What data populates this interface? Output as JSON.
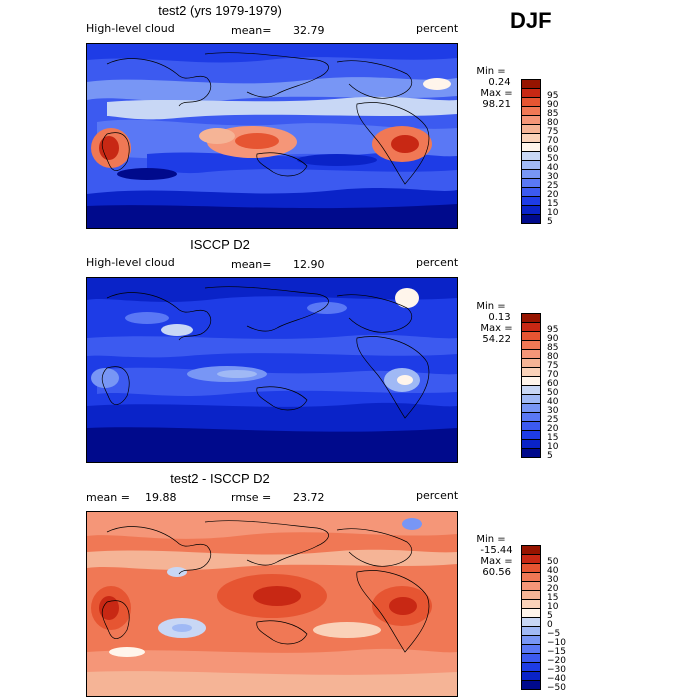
{
  "season": "DJF",
  "chart_data": [
    {
      "type": "heatmap",
      "title": "test2 (yrs 1979-1979)",
      "variable": "High-level cloud",
      "stat_label": "mean=",
      "stat_value": "32.79",
      "units": "percent",
      "min_label": "Min =",
      "min_value": "0.24",
      "max_label": "Max =",
      "max_value": "98.21",
      "colorbar_levels": [
        "5",
        "10",
        "15",
        "20",
        "25",
        "30",
        "40",
        "50",
        "60",
        "70",
        "75",
        "80",
        "85",
        "90",
        "95"
      ],
      "colorbar_colors": [
        "#000a8c",
        "#0a23c8",
        "#1e3ce6",
        "#3c5af0",
        "#5a78f5",
        "#7896f5",
        "#a0b9f5",
        "#c8d7f5",
        "#fff5eb",
        "#fad2b9",
        "#f5b496",
        "#f59678",
        "#f07855",
        "#e65532",
        "#c82814",
        "#961400"
      ]
    },
    {
      "type": "heatmap",
      "title": "ISCCP D2",
      "variable": "High-level cloud",
      "stat_label": "mean=",
      "stat_value": "12.90",
      "units": "percent",
      "min_label": "Min =",
      "min_value": "0.13",
      "max_label": "Max =",
      "max_value": "54.22",
      "colorbar_levels": [
        "5",
        "10",
        "15",
        "20",
        "25",
        "30",
        "40",
        "50",
        "60",
        "70",
        "75",
        "80",
        "85",
        "90",
        "95"
      ],
      "colorbar_colors": [
        "#000a8c",
        "#0a23c8",
        "#1e3ce6",
        "#3c5af0",
        "#5a78f5",
        "#7896f5",
        "#a0b9f5",
        "#c8d7f5",
        "#fff5eb",
        "#fad2b9",
        "#f5b496",
        "#f59678",
        "#f07855",
        "#e65532",
        "#c82814",
        "#961400"
      ]
    },
    {
      "type": "heatmap",
      "title": "test2 - ISCCP D2",
      "stat_label": "mean =",
      "stat_value": "19.88",
      "rmse_label": "rmse =",
      "rmse_value": "23.72",
      "units": "percent",
      "min_label": "Min =",
      "min_value": "-15.44",
      "max_label": "Max =",
      "max_value": "60.56",
      "colorbar_levels": [
        "−50",
        "−40",
        "−30",
        "−20",
        "−15",
        "−10",
        "−5",
        "0",
        "5",
        "10",
        "15",
        "20",
        "30",
        "40",
        "50"
      ],
      "colorbar_colors": [
        "#000a8c",
        "#0a23c8",
        "#1e3ce6",
        "#3c5af0",
        "#5a78f5",
        "#7896f5",
        "#a0b9f5",
        "#c8d7f5",
        "#fff5eb",
        "#fad2b9",
        "#f5b496",
        "#f59678",
        "#f07855",
        "#e65532",
        "#c82814",
        "#961400"
      ]
    }
  ]
}
